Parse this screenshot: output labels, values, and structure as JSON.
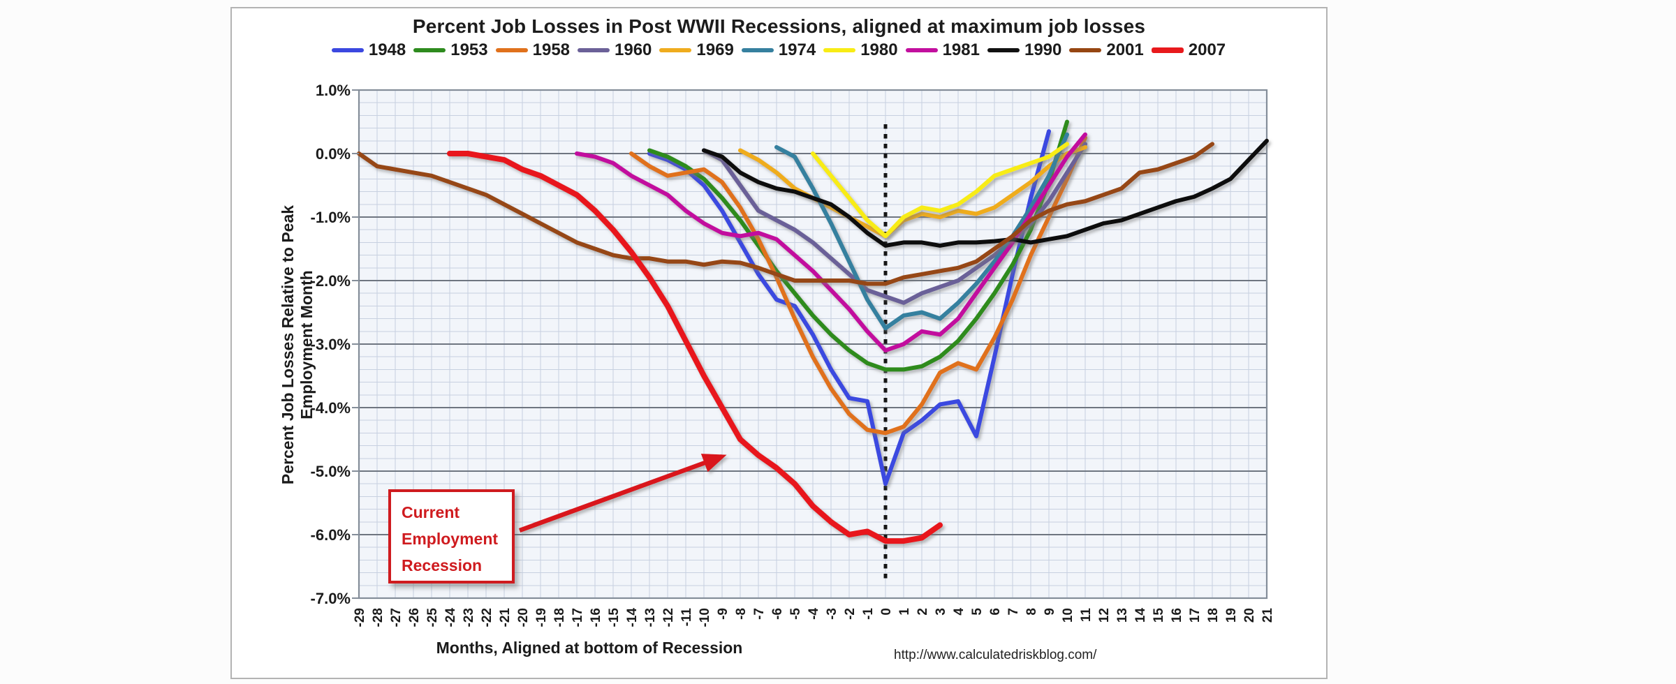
{
  "title": "Percent Job Losses in Post WWII Recessions, aligned at maximum job losses",
  "y_axis": {
    "title": "Percent Job Losses Relative to Peak Employment Month",
    "tick_labels": [
      "1.0%",
      "0.0%",
      "-1.0%",
      "-2.0%",
      "-3.0%",
      "-4.0%",
      "-5.0%",
      "-6.0%",
      "-7.0%"
    ]
  },
  "x_axis": {
    "title": "Months, Aligned at bottom of Recession"
  },
  "footer": {
    "url": "http://www.calculatedriskblog.com/"
  },
  "annotation": {
    "lines": [
      "Current",
      "Employment",
      "Recession"
    ],
    "color": "#cf1b1f"
  },
  "chart_data": {
    "type": "line",
    "title": "Percent Job Losses in Post WWII Recessions, aligned at maximum job losses",
    "xlabel": "Months, Aligned at bottom of Recession",
    "ylabel": "Percent Job Losses Relative to Peak Employment Month",
    "xlim": [
      -29,
      21
    ],
    "ylim": [
      -7.0,
      1.0
    ],
    "x_tick_step": 1,
    "y_major_step": 1.0,
    "y_minor_step": 0.2,
    "grid": true,
    "legend_position": "top",
    "vertical_marker": {
      "month": 0,
      "style": "dotted"
    },
    "colors": {
      "grid_minor": "#c7d0e0",
      "grid_major": "#6e7580",
      "plot_border": "#848d99",
      "plot_background": "#f2f5fa",
      "marker_line": "#161616",
      "arrow": "#d9161a"
    },
    "series": [
      {
        "name": "1948",
        "color": "#3b48e0",
        "width": 6,
        "points": [
          [
            -13,
            0.0
          ],
          [
            -12,
            -0.1
          ],
          [
            -11,
            -0.25
          ],
          [
            -10,
            -0.5
          ],
          [
            -9,
            -0.9
          ],
          [
            -8,
            -1.4
          ],
          [
            -7,
            -1.9
          ],
          [
            -6,
            -2.3
          ],
          [
            -5,
            -2.4
          ],
          [
            -4,
            -2.85
          ],
          [
            -3,
            -3.4
          ],
          [
            -2,
            -3.85
          ],
          [
            -1,
            -3.9
          ],
          [
            0,
            -5.2
          ],
          [
            1,
            -4.4
          ],
          [
            2,
            -4.2
          ],
          [
            3,
            -3.95
          ],
          [
            4,
            -3.9
          ],
          [
            5,
            -4.45
          ],
          [
            6,
            -3.2
          ],
          [
            7,
            -1.9
          ],
          [
            8,
            -0.7
          ],
          [
            9,
            0.35
          ]
        ]
      },
      {
        "name": "1953",
        "color": "#2e8b1e",
        "width": 6,
        "points": [
          [
            -13,
            0.05
          ],
          [
            -12,
            -0.05
          ],
          [
            -11,
            -0.2
          ],
          [
            -10,
            -0.4
          ],
          [
            -9,
            -0.7
          ],
          [
            -8,
            -1.05
          ],
          [
            -7,
            -1.45
          ],
          [
            -6,
            -1.85
          ],
          [
            -5,
            -2.2
          ],
          [
            -4,
            -2.55
          ],
          [
            -3,
            -2.85
          ],
          [
            -2,
            -3.1
          ],
          [
            -1,
            -3.3
          ],
          [
            0,
            -3.4
          ],
          [
            1,
            -3.4
          ],
          [
            2,
            -3.35
          ],
          [
            3,
            -3.2
          ],
          [
            4,
            -2.95
          ],
          [
            5,
            -2.6
          ],
          [
            6,
            -2.2
          ],
          [
            7,
            -1.75
          ],
          [
            8,
            -1.2
          ],
          [
            9,
            -0.45
          ],
          [
            10,
            0.5
          ]
        ]
      },
      {
        "name": "1958",
        "color": "#e0711c",
        "width": 6,
        "points": [
          [
            -14,
            0.0
          ],
          [
            -13,
            -0.2
          ],
          [
            -12,
            -0.35
          ],
          [
            -11,
            -0.3
          ],
          [
            -10,
            -0.25
          ],
          [
            -9,
            -0.45
          ],
          [
            -8,
            -0.85
          ],
          [
            -7,
            -1.35
          ],
          [
            -6,
            -1.95
          ],
          [
            -5,
            -2.6
          ],
          [
            -4,
            -3.2
          ],
          [
            -3,
            -3.7
          ],
          [
            -2,
            -4.1
          ],
          [
            -1,
            -4.35
          ],
          [
            0,
            -4.4
          ],
          [
            1,
            -4.3
          ],
          [
            2,
            -3.95
          ],
          [
            3,
            -3.45
          ],
          [
            4,
            -3.3
          ],
          [
            5,
            -3.4
          ],
          [
            6,
            -2.9
          ],
          [
            7,
            -2.3
          ],
          [
            8,
            -1.6
          ],
          [
            9,
            -1.0
          ],
          [
            10,
            -0.4
          ],
          [
            11,
            0.25
          ]
        ]
      },
      {
        "name": "1960",
        "color": "#6b6198",
        "width": 6,
        "points": [
          [
            -10,
            0.05
          ],
          [
            -9,
            -0.1
          ],
          [
            -8,
            -0.5
          ],
          [
            -7,
            -0.9
          ],
          [
            -6,
            -1.05
          ],
          [
            -5,
            -1.2
          ],
          [
            -4,
            -1.4
          ],
          [
            -3,
            -1.65
          ],
          [
            -2,
            -1.9
          ],
          [
            -1,
            -2.15
          ],
          [
            0,
            -2.25
          ],
          [
            1,
            -2.35
          ],
          [
            2,
            -2.2
          ],
          [
            3,
            -2.1
          ],
          [
            4,
            -2.0
          ],
          [
            5,
            -1.8
          ],
          [
            6,
            -1.6
          ],
          [
            7,
            -1.35
          ],
          [
            8,
            -1.1
          ],
          [
            9,
            -0.75
          ],
          [
            10,
            -0.3
          ],
          [
            11,
            0.15
          ]
        ]
      },
      {
        "name": "1969",
        "color": "#efac1e",
        "width": 6,
        "points": [
          [
            -8,
            0.05
          ],
          [
            -7,
            -0.1
          ],
          [
            -6,
            -0.3
          ],
          [
            -5,
            -0.55
          ],
          [
            -4,
            -0.7
          ],
          [
            -3,
            -0.85
          ],
          [
            -2,
            -1.0
          ],
          [
            -1,
            -1.15
          ],
          [
            0,
            -1.3
          ],
          [
            1,
            -1.05
          ],
          [
            2,
            -0.95
          ],
          [
            3,
            -1.0
          ],
          [
            4,
            -0.9
          ],
          [
            5,
            -0.95
          ],
          [
            6,
            -0.85
          ],
          [
            7,
            -0.65
          ],
          [
            8,
            -0.45
          ],
          [
            9,
            -0.2
          ],
          [
            10,
            0.0
          ],
          [
            11,
            0.1
          ]
        ]
      },
      {
        "name": "1974",
        "color": "#36809f",
        "width": 6,
        "points": [
          [
            -6,
            0.1
          ],
          [
            -5,
            -0.05
          ],
          [
            -4,
            -0.55
          ],
          [
            -3,
            -1.1
          ],
          [
            -2,
            -1.7
          ],
          [
            -1,
            -2.3
          ],
          [
            0,
            -2.75
          ],
          [
            1,
            -2.55
          ],
          [
            2,
            -2.5
          ],
          [
            3,
            -2.6
          ],
          [
            4,
            -2.35
          ],
          [
            5,
            -2.05
          ],
          [
            6,
            -1.7
          ],
          [
            7,
            -1.3
          ],
          [
            8,
            -0.85
          ],
          [
            9,
            -0.35
          ],
          [
            10,
            0.3
          ]
        ]
      },
      {
        "name": "1980",
        "color": "#f8ec15",
        "width": 6,
        "points": [
          [
            -4,
            0.0
          ],
          [
            -3,
            -0.35
          ],
          [
            -2,
            -0.7
          ],
          [
            -1,
            -1.05
          ],
          [
            0,
            -1.3
          ],
          [
            1,
            -1.0
          ],
          [
            2,
            -0.85
          ],
          [
            3,
            -0.9
          ],
          [
            4,
            -0.8
          ],
          [
            5,
            -0.6
          ],
          [
            6,
            -0.35
          ],
          [
            7,
            -0.25
          ],
          [
            8,
            -0.15
          ],
          [
            9,
            -0.05
          ],
          [
            10,
            0.15
          ]
        ]
      },
      {
        "name": "1981",
        "color": "#c20f9e",
        "width": 6,
        "points": [
          [
            -17,
            0.0
          ],
          [
            -16,
            -0.05
          ],
          [
            -15,
            -0.15
          ],
          [
            -14,
            -0.35
          ],
          [
            -13,
            -0.5
          ],
          [
            -12,
            -0.65
          ],
          [
            -11,
            -0.9
          ],
          [
            -10,
            -1.1
          ],
          [
            -9,
            -1.25
          ],
          [
            -8,
            -1.3
          ],
          [
            -7,
            -1.25
          ],
          [
            -6,
            -1.35
          ],
          [
            -5,
            -1.6
          ],
          [
            -4,
            -1.85
          ],
          [
            -3,
            -2.15
          ],
          [
            -2,
            -2.45
          ],
          [
            -1,
            -2.8
          ],
          [
            0,
            -3.1
          ],
          [
            1,
            -3.0
          ],
          [
            2,
            -2.8
          ],
          [
            3,
            -2.85
          ],
          [
            4,
            -2.6
          ],
          [
            5,
            -2.2
          ],
          [
            6,
            -1.8
          ],
          [
            7,
            -1.4
          ],
          [
            8,
            -0.95
          ],
          [
            9,
            -0.5
          ],
          [
            10,
            -0.05
          ],
          [
            11,
            0.3
          ]
        ]
      },
      {
        "name": "1990",
        "color": "#111111",
        "width": 6,
        "points": [
          [
            -10,
            0.05
          ],
          [
            -9,
            -0.05
          ],
          [
            -8,
            -0.3
          ],
          [
            -7,
            -0.45
          ],
          [
            -6,
            -0.55
          ],
          [
            -5,
            -0.6
          ],
          [
            -4,
            -0.7
          ],
          [
            -3,
            -0.8
          ],
          [
            -2,
            -1.0
          ],
          [
            -1,
            -1.25
          ],
          [
            0,
            -1.45
          ],
          [
            1,
            -1.4
          ],
          [
            2,
            -1.4
          ],
          [
            3,
            -1.45
          ],
          [
            4,
            -1.4
          ],
          [
            5,
            -1.4
          ],
          [
            6,
            -1.38
          ],
          [
            7,
            -1.35
          ],
          [
            8,
            -1.4
          ],
          [
            9,
            -1.35
          ],
          [
            10,
            -1.3
          ],
          [
            11,
            -1.2
          ],
          [
            12,
            -1.1
          ],
          [
            13,
            -1.05
          ],
          [
            14,
            -0.95
          ],
          [
            15,
            -0.85
          ],
          [
            16,
            -0.75
          ],
          [
            17,
            -0.68
          ],
          [
            18,
            -0.55
          ],
          [
            19,
            -0.4
          ],
          [
            20,
            -0.1
          ],
          [
            21,
            0.2
          ]
        ]
      },
      {
        "name": "2001",
        "color": "#964612",
        "width": 6,
        "points": [
          [
            -29,
            0.0
          ],
          [
            -28,
            -0.2
          ],
          [
            -27,
            -0.25
          ],
          [
            -26,
            -0.3
          ],
          [
            -25,
            -0.35
          ],
          [
            -24,
            -0.45
          ],
          [
            -23,
            -0.55
          ],
          [
            -22,
            -0.65
          ],
          [
            -21,
            -0.8
          ],
          [
            -20,
            -0.95
          ],
          [
            -19,
            -1.1
          ],
          [
            -18,
            -1.25
          ],
          [
            -17,
            -1.4
          ],
          [
            -16,
            -1.5
          ],
          [
            -15,
            -1.6
          ],
          [
            -14,
            -1.65
          ],
          [
            -13,
            -1.65
          ],
          [
            -12,
            -1.7
          ],
          [
            -11,
            -1.7
          ],
          [
            -10,
            -1.75
          ],
          [
            -9,
            -1.7
          ],
          [
            -8,
            -1.72
          ],
          [
            -7,
            -1.8
          ],
          [
            -6,
            -1.9
          ],
          [
            -5,
            -2.0
          ],
          [
            -4,
            -2.0
          ],
          [
            -3,
            -2.0
          ],
          [
            -2,
            -2.0
          ],
          [
            -1,
            -2.05
          ],
          [
            0,
            -2.05
          ],
          [
            1,
            -1.95
          ],
          [
            2,
            -1.9
          ],
          [
            3,
            -1.85
          ],
          [
            4,
            -1.8
          ],
          [
            5,
            -1.7
          ],
          [
            6,
            -1.5
          ],
          [
            7,
            -1.3
          ],
          [
            8,
            -1.05
          ],
          [
            9,
            -0.9
          ],
          [
            10,
            -0.8
          ],
          [
            11,
            -0.75
          ],
          [
            12,
            -0.65
          ],
          [
            13,
            -0.55
          ],
          [
            14,
            -0.3
          ],
          [
            15,
            -0.25
          ],
          [
            16,
            -0.15
          ],
          [
            17,
            -0.05
          ],
          [
            18,
            0.15
          ]
        ]
      },
      {
        "name": "2007",
        "color": "#e8191c",
        "width": 8,
        "points": [
          [
            -24,
            0.0
          ],
          [
            -23,
            0.0
          ],
          [
            -22,
            -0.05
          ],
          [
            -21,
            -0.1
          ],
          [
            -20,
            -0.25
          ],
          [
            -19,
            -0.35
          ],
          [
            -18,
            -0.5
          ],
          [
            -17,
            -0.65
          ],
          [
            -16,
            -0.9
          ],
          [
            -15,
            -1.2
          ],
          [
            -14,
            -1.55
          ],
          [
            -13,
            -1.95
          ],
          [
            -12,
            -2.4
          ],
          [
            -11,
            -2.95
          ],
          [
            -10,
            -3.5
          ],
          [
            -9,
            -4.0
          ],
          [
            -8,
            -4.5
          ],
          [
            -7,
            -4.75
          ],
          [
            -6,
            -4.95
          ],
          [
            -5,
            -5.2
          ],
          [
            -4,
            -5.55
          ],
          [
            -3,
            -5.8
          ],
          [
            -2,
            -6.0
          ],
          [
            -1,
            -5.95
          ],
          [
            0,
            -6.1
          ],
          [
            1,
            -6.1
          ],
          [
            2,
            -6.05
          ],
          [
            3,
            -5.85
          ]
        ]
      }
    ]
  }
}
